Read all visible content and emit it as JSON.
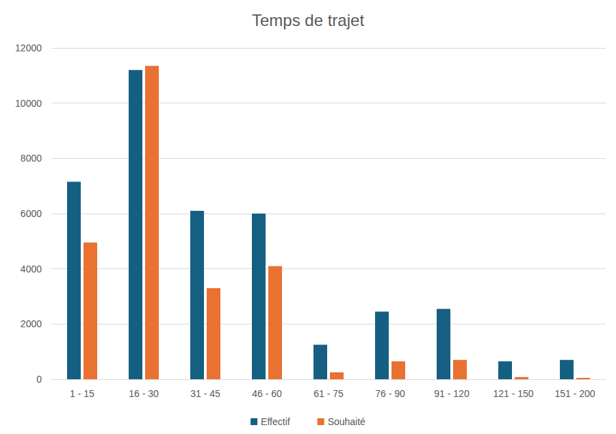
{
  "chart_data": {
    "type": "bar",
    "title": "Temps de trajet",
    "categories": [
      "1 - 15",
      "16 - 30",
      "31 - 45",
      "46 - 60",
      "61 - 75",
      "76 - 90",
      "91 - 120",
      "121 - 150",
      "151 - 200"
    ],
    "series": [
      {
        "name": "Effectif",
        "color": "#156082",
        "values": [
          7150,
          11200,
          6100,
          6000,
          1250,
          2450,
          2550,
          650,
          700
        ]
      },
      {
        "name": "Souhaité",
        "color": "#e97132",
        "values": [
          4950,
          11350,
          3300,
          4100,
          250,
          650,
          700,
          80,
          50
        ]
      }
    ],
    "ylim": [
      0,
      12000
    ],
    "yticks": [
      0,
      2000,
      4000,
      6000,
      8000,
      10000,
      12000
    ],
    "grid": true,
    "legend": "bottom"
  }
}
